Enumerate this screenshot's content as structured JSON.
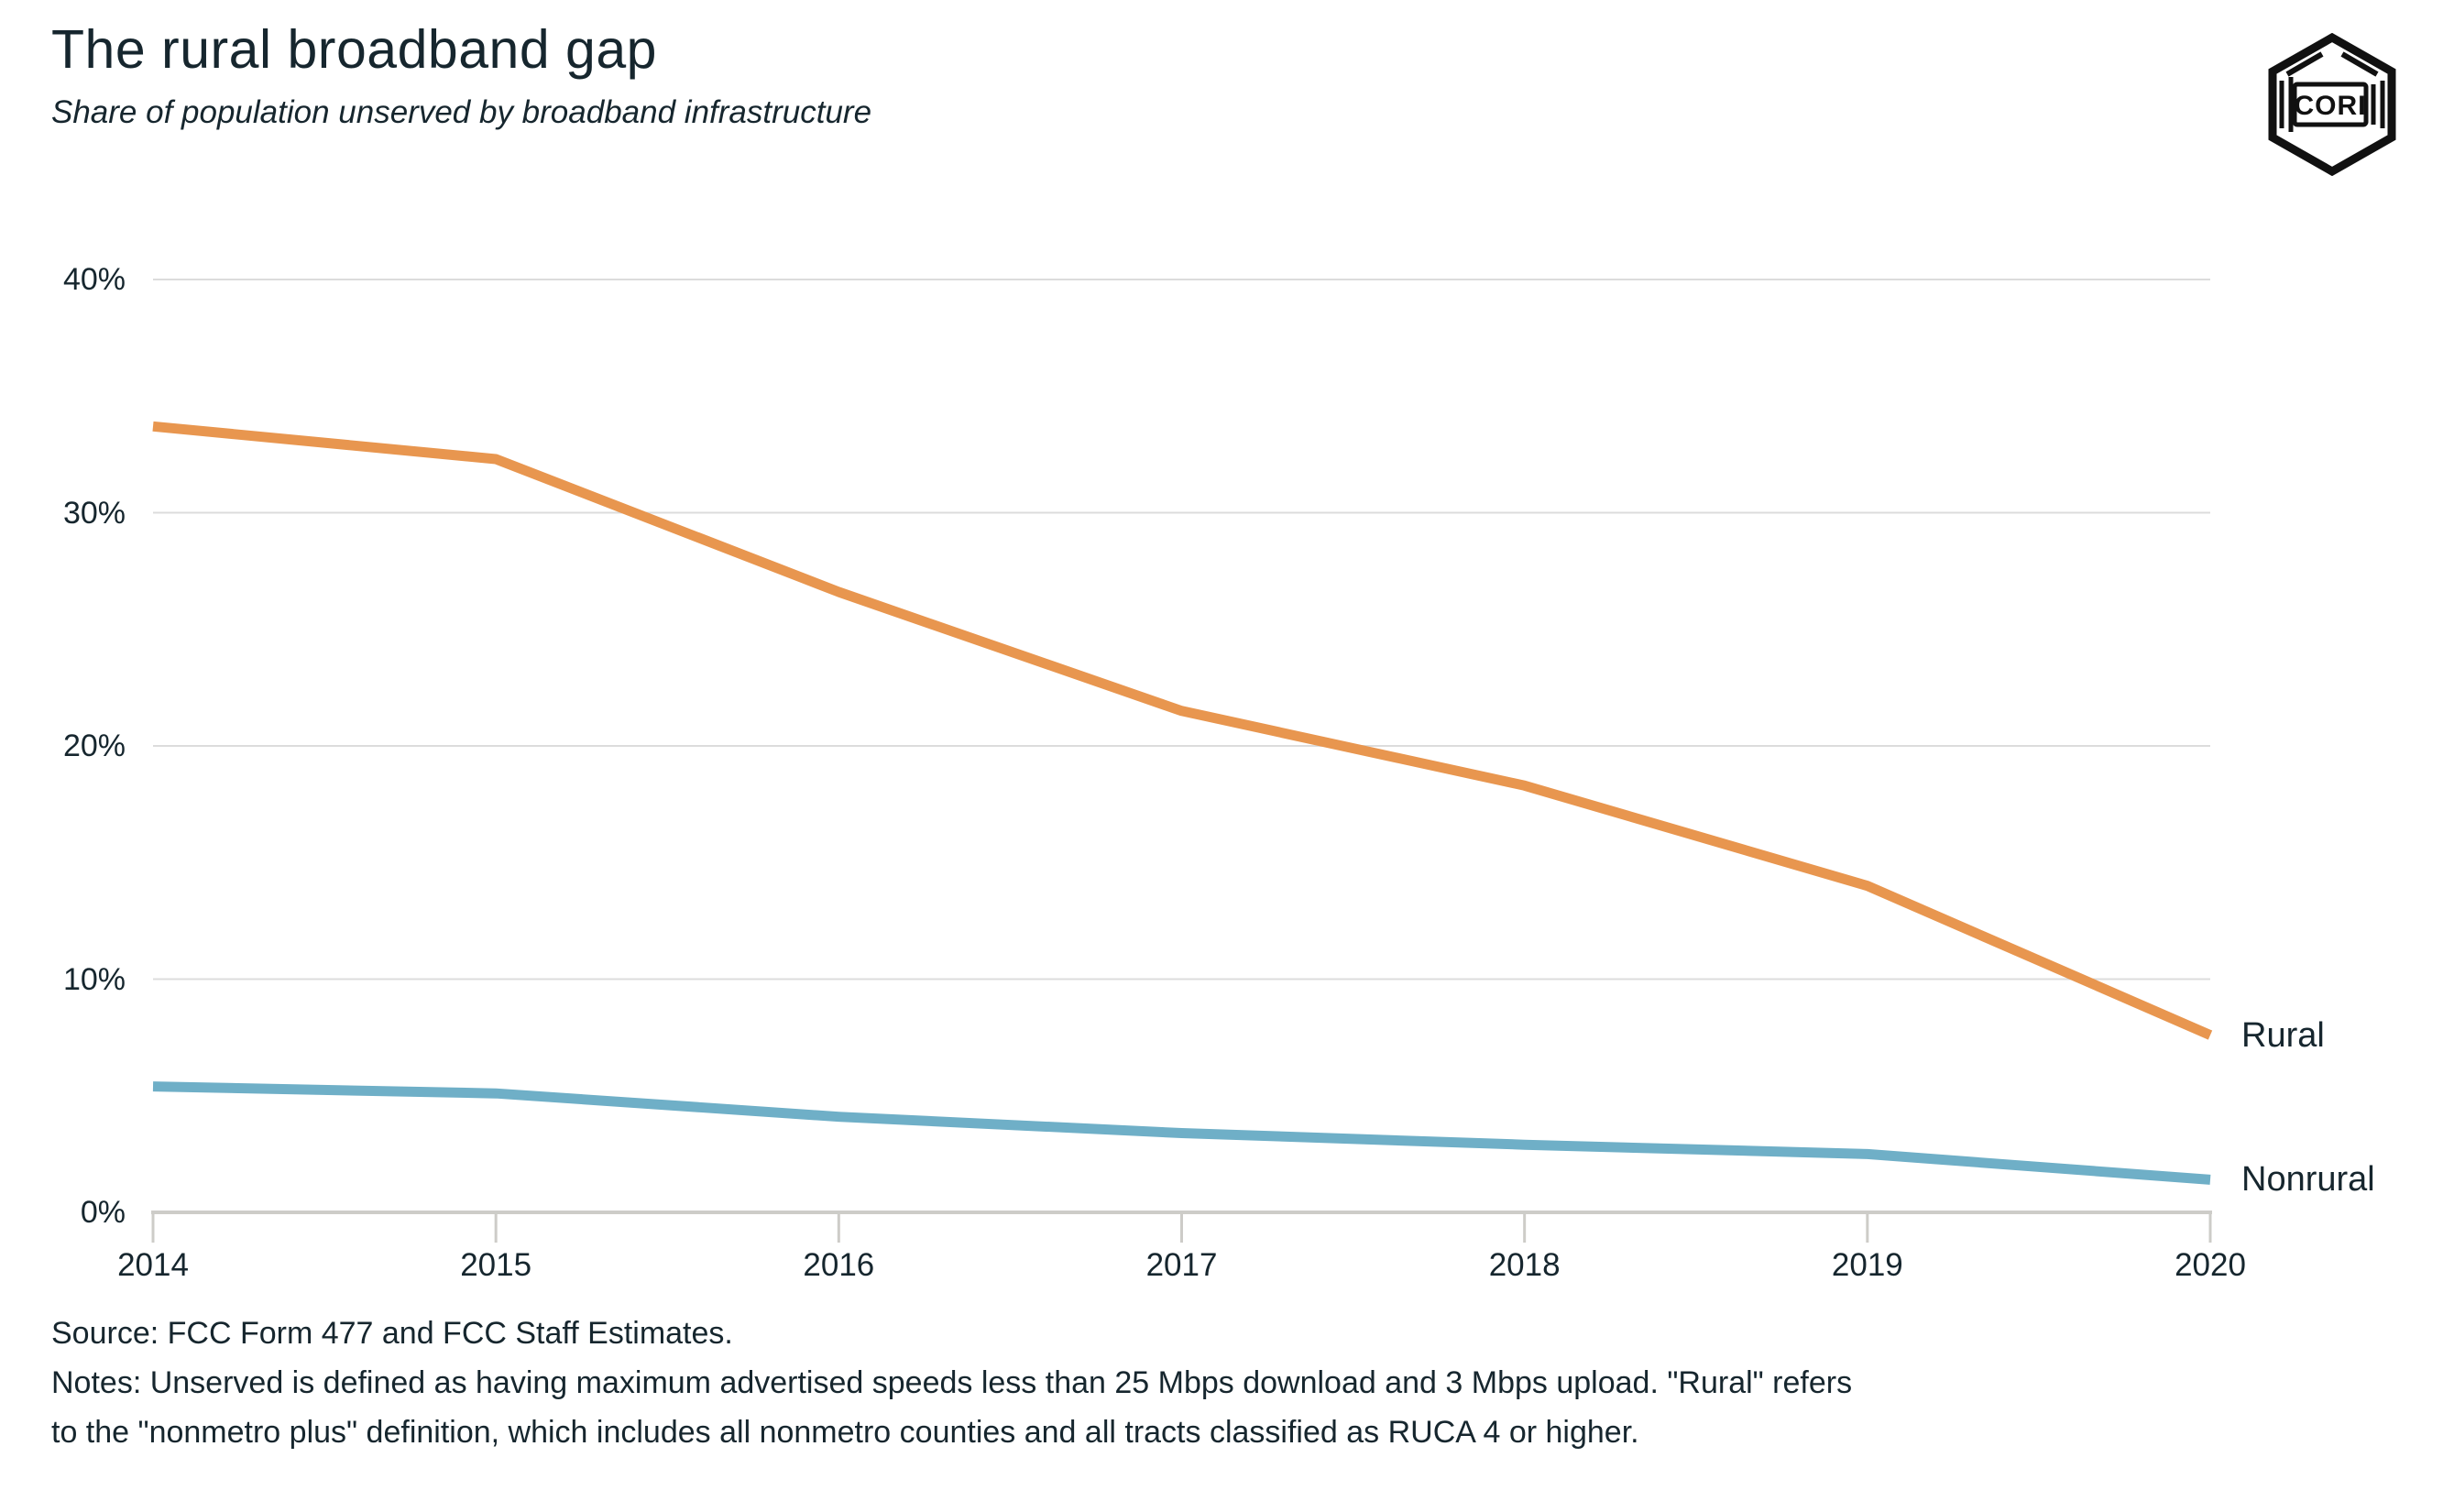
{
  "header": {
    "title": "The rural broadband gap",
    "subtitle": "Share of population unserved by broadband infrastructure"
  },
  "logo": {
    "text": "CORI"
  },
  "chart_data": {
    "type": "line",
    "x": [
      2014,
      2015,
      2016,
      2017,
      2018,
      2019,
      2020
    ],
    "x_tick_labels": [
      "2014",
      "2015",
      "2016",
      "2017",
      "2018",
      "2019",
      "2020"
    ],
    "series": [
      {
        "name": "Rural",
        "color": "#E8964F",
        "values": [
          33.7,
          32.3,
          26.6,
          21.5,
          18.3,
          14.0,
          7.6
        ]
      },
      {
        "name": "Nonrural",
        "color": "#6FAFC7",
        "values": [
          5.4,
          5.1,
          4.1,
          3.4,
          2.9,
          2.5,
          1.4
        ]
      }
    ],
    "ylim": [
      0,
      40
    ],
    "y_ticks": [
      0,
      10,
      20,
      30,
      40
    ],
    "y_tick_labels": [
      "0%",
      "10%",
      "20%",
      "30%",
      "40%"
    ],
    "grid": "horizontal",
    "legend_position": "line-end-right",
    "colors": {
      "gridline": "#dcdcdc",
      "baseline": "#cdccc8",
      "tick": "#cdccc8",
      "text": "#16262e"
    }
  },
  "footer": {
    "source": "Source: FCC Form 477 and FCC Staff Estimates.",
    "notes_lines": [
      "Notes: Unserved is defined as having maximum advertised speeds less than 25 Mbps download and 3 Mbps upload. \"Rural\" refers",
      "to the \"nonmetro plus\" definition, which includes all nonmetro counties and all tracts classified as RUCA 4 or higher."
    ]
  }
}
